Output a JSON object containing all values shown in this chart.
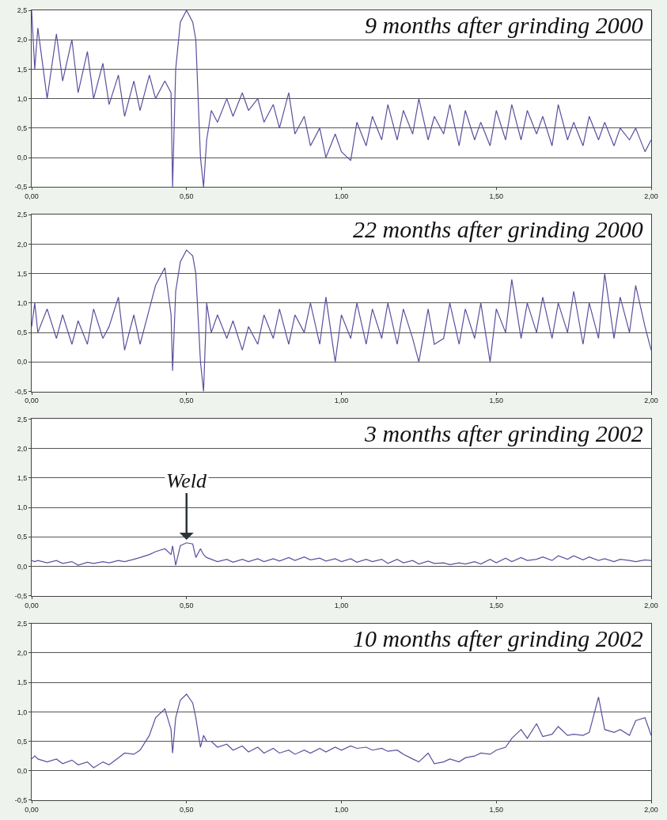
{
  "chart_data": [
    {
      "type": "line",
      "title": "9 months after grinding 2000",
      "xlim": [
        0,
        2
      ],
      "ylim": [
        -0.5,
        2.5
      ],
      "xticks": [
        {
          "value": 0,
          "label": "0,00"
        },
        {
          "value": 0.5,
          "label": "0,50"
        },
        {
          "value": 1,
          "label": "1,00"
        },
        {
          "value": 1.5,
          "label": "1,50"
        },
        {
          "value": 2,
          "label": "2,00"
        }
      ],
      "yticks": [
        {
          "value": -0.5,
          "label": "-0,5"
        },
        {
          "value": 0,
          "label": "0,0"
        },
        {
          "value": 0.5,
          "label": "0,5"
        },
        {
          "value": 1,
          "label": "1,0"
        },
        {
          "value": 1.5,
          "label": "1,5"
        },
        {
          "value": 2,
          "label": "2,0"
        },
        {
          "value": 2.5,
          "label": "2,5"
        }
      ],
      "grid": "y",
      "marker": "none",
      "x": [
        0,
        0.01,
        0.02,
        0.05,
        0.08,
        0.1,
        0.13,
        0.15,
        0.18,
        0.2,
        0.23,
        0.25,
        0.28,
        0.3,
        0.33,
        0.35,
        0.38,
        0.4,
        0.43,
        0.45,
        0.455,
        0.465,
        0.48,
        0.5,
        0.52,
        0.53,
        0.545,
        0.555,
        0.565,
        0.58,
        0.6,
        0.63,
        0.65,
        0.68,
        0.7,
        0.73,
        0.75,
        0.78,
        0.8,
        0.83,
        0.85,
        0.88,
        0.9,
        0.93,
        0.95,
        0.98,
        1.0,
        1.03,
        1.05,
        1.08,
        1.1,
        1.13,
        1.15,
        1.18,
        1.2,
        1.23,
        1.25,
        1.28,
        1.3,
        1.33,
        1.35,
        1.38,
        1.4,
        1.43,
        1.45,
        1.48,
        1.5,
        1.53,
        1.55,
        1.58,
        1.6,
        1.63,
        1.65,
        1.68,
        1.7,
        1.73,
        1.75,
        1.78,
        1.8,
        1.83,
        1.85,
        1.88,
        1.9,
        1.93,
        1.95,
        1.98,
        2.0
      ],
      "series": [
        {
          "color": "#5b4f9e",
          "values": [
            2.5,
            1.5,
            2.2,
            1.0,
            2.1,
            1.3,
            2.0,
            1.1,
            1.8,
            1.0,
            1.6,
            0.9,
            1.4,
            0.7,
            1.3,
            0.8,
            1.4,
            1.0,
            1.3,
            1.1,
            -0.5,
            1.5,
            2.3,
            2.5,
            2.3,
            2.0,
            0.0,
            -0.5,
            0.3,
            0.8,
            0.6,
            1.0,
            0.7,
            1.1,
            0.8,
            1.0,
            0.6,
            0.9,
            0.5,
            1.1,
            0.4,
            0.7,
            0.2,
            0.5,
            0.0,
            0.4,
            0.1,
            -0.05,
            0.6,
            0.2,
            0.7,
            0.3,
            0.9,
            0.3,
            0.8,
            0.4,
            1.0,
            0.3,
            0.7,
            0.4,
            0.9,
            0.2,
            0.8,
            0.3,
            0.6,
            0.2,
            0.8,
            0.3,
            0.9,
            0.3,
            0.8,
            0.4,
            0.7,
            0.2,
            0.9,
            0.3,
            0.6,
            0.2,
            0.7,
            0.3,
            0.6,
            0.2,
            0.5,
            0.3,
            0.5,
            0.1,
            0.3
          ]
        }
      ]
    },
    {
      "type": "line",
      "title": "22 months after grinding 2000",
      "xlim": [
        0,
        2
      ],
      "ylim": [
        -0.5,
        2.5
      ],
      "xticks": [
        {
          "value": 0,
          "label": "0,00"
        },
        {
          "value": 0.5,
          "label": "0,50"
        },
        {
          "value": 1,
          "label": "1,00"
        },
        {
          "value": 1.5,
          "label": "1,50"
        },
        {
          "value": 2,
          "label": "2,00"
        }
      ],
      "yticks": [
        {
          "value": -0.5,
          "label": "-0,5"
        },
        {
          "value": 0,
          "label": "0,0"
        },
        {
          "value": 0.5,
          "label": "0,5"
        },
        {
          "value": 1,
          "label": "1,0"
        },
        {
          "value": 1.5,
          "label": "1,5"
        },
        {
          "value": 2,
          "label": "2,0"
        },
        {
          "value": 2.5,
          "label": "2,5"
        }
      ],
      "grid": "y",
      "marker": "none",
      "x": [
        0,
        0.01,
        0.02,
        0.05,
        0.08,
        0.1,
        0.13,
        0.15,
        0.18,
        0.2,
        0.23,
        0.25,
        0.28,
        0.3,
        0.33,
        0.35,
        0.38,
        0.4,
        0.43,
        0.45,
        0.455,
        0.465,
        0.48,
        0.5,
        0.52,
        0.53,
        0.545,
        0.555,
        0.565,
        0.58,
        0.6,
        0.63,
        0.65,
        0.68,
        0.7,
        0.73,
        0.75,
        0.78,
        0.8,
        0.83,
        0.85,
        0.88,
        0.9,
        0.93,
        0.95,
        0.98,
        1.0,
        1.03,
        1.05,
        1.08,
        1.1,
        1.13,
        1.15,
        1.18,
        1.2,
        1.23,
        1.25,
        1.28,
        1.3,
        1.33,
        1.35,
        1.38,
        1.4,
        1.43,
        1.45,
        1.48,
        1.5,
        1.53,
        1.55,
        1.58,
        1.6,
        1.63,
        1.65,
        1.68,
        1.7,
        1.73,
        1.75,
        1.78,
        1.8,
        1.83,
        1.85,
        1.88,
        1.9,
        1.93,
        1.95,
        1.98,
        2.0
      ],
      "series": [
        {
          "color": "#5b4f9e",
          "values": [
            0.6,
            1.0,
            0.5,
            0.9,
            0.4,
            0.8,
            0.3,
            0.7,
            0.3,
            0.9,
            0.4,
            0.6,
            1.1,
            0.2,
            0.8,
            0.3,
            0.9,
            1.3,
            1.6,
            0.8,
            -0.15,
            1.2,
            1.7,
            1.9,
            1.8,
            1.5,
            0.0,
            -0.5,
            1.0,
            0.5,
            0.8,
            0.4,
            0.7,
            0.2,
            0.6,
            0.3,
            0.8,
            0.4,
            0.9,
            0.3,
            0.8,
            0.5,
            1.0,
            0.3,
            1.1,
            0.0,
            0.8,
            0.4,
            1.0,
            0.3,
            0.9,
            0.4,
            1.0,
            0.3,
            0.9,
            0.4,
            0.0,
            0.9,
            0.3,
            0.4,
            1.0,
            0.3,
            0.9,
            0.4,
            1.0,
            0.0,
            0.9,
            0.5,
            1.4,
            0.4,
            1.0,
            0.5,
            1.1,
            0.4,
            1.0,
            0.5,
            1.2,
            0.3,
            1.0,
            0.4,
            1.5,
            0.4,
            1.1,
            0.5,
            1.3,
            0.6,
            0.2
          ]
        }
      ]
    },
    {
      "type": "line",
      "title": "3 months after grinding 2002",
      "xlim": [
        0,
        2
      ],
      "ylim": [
        -0.5,
        2.5
      ],
      "xticks": [
        {
          "value": 0,
          "label": "0,00"
        },
        {
          "value": 0.5,
          "label": "0,50"
        },
        {
          "value": 1,
          "label": "1,00"
        },
        {
          "value": 1.5,
          "label": "1,50"
        },
        {
          "value": 2,
          "label": "2,00"
        }
      ],
      "yticks": [
        {
          "value": -0.5,
          "label": "-0,5"
        },
        {
          "value": 0,
          "label": "0,0"
        },
        {
          "value": 0.5,
          "label": "0,5"
        },
        {
          "value": 1,
          "label": "1,0"
        },
        {
          "value": 1.5,
          "label": "1,5"
        },
        {
          "value": 2,
          "label": "2,0"
        },
        {
          "value": 2.5,
          "label": "2,5"
        }
      ],
      "grid": "y",
      "marker": "none",
      "annotations": [
        {
          "text": "Weld",
          "x": 0.5,
          "y": 0.45
        }
      ],
      "x": [
        0,
        0.01,
        0.02,
        0.05,
        0.08,
        0.1,
        0.13,
        0.15,
        0.18,
        0.2,
        0.23,
        0.25,
        0.28,
        0.3,
        0.33,
        0.35,
        0.38,
        0.4,
        0.43,
        0.45,
        0.455,
        0.465,
        0.48,
        0.5,
        0.52,
        0.53,
        0.545,
        0.555,
        0.565,
        0.58,
        0.6,
        0.63,
        0.65,
        0.68,
        0.7,
        0.73,
        0.75,
        0.78,
        0.8,
        0.83,
        0.85,
        0.88,
        0.9,
        0.93,
        0.95,
        0.98,
        1.0,
        1.03,
        1.05,
        1.08,
        1.1,
        1.13,
        1.15,
        1.18,
        1.2,
        1.23,
        1.25,
        1.28,
        1.3,
        1.33,
        1.35,
        1.38,
        1.4,
        1.43,
        1.45,
        1.48,
        1.5,
        1.53,
        1.55,
        1.58,
        1.6,
        1.63,
        1.65,
        1.68,
        1.7,
        1.73,
        1.75,
        1.78,
        1.8,
        1.83,
        1.85,
        1.88,
        1.9,
        1.93,
        1.95,
        1.98,
        2.0
      ],
      "series": [
        {
          "color": "#5b4f9e",
          "values": [
            0.1,
            0.08,
            0.1,
            0.06,
            0.1,
            0.05,
            0.08,
            0.02,
            0.07,
            0.05,
            0.08,
            0.06,
            0.1,
            0.08,
            0.12,
            0.15,
            0.2,
            0.25,
            0.3,
            0.2,
            0.35,
            0.02,
            0.35,
            0.4,
            0.38,
            0.15,
            0.3,
            0.2,
            0.15,
            0.12,
            0.08,
            0.12,
            0.07,
            0.12,
            0.08,
            0.13,
            0.08,
            0.13,
            0.09,
            0.15,
            0.1,
            0.16,
            0.11,
            0.14,
            0.09,
            0.13,
            0.08,
            0.13,
            0.07,
            0.12,
            0.08,
            0.12,
            0.05,
            0.12,
            0.06,
            0.1,
            0.04,
            0.09,
            0.05,
            0.06,
            0.03,
            0.06,
            0.04,
            0.08,
            0.04,
            0.12,
            0.06,
            0.14,
            0.08,
            0.15,
            0.1,
            0.12,
            0.16,
            0.1,
            0.18,
            0.12,
            0.18,
            0.11,
            0.16,
            0.1,
            0.13,
            0.08,
            0.12,
            0.1,
            0.08,
            0.11,
            0.1
          ]
        }
      ]
    },
    {
      "type": "line",
      "title": "10 months after grinding 2002",
      "xlim": [
        0,
        2
      ],
      "ylim": [
        -0.5,
        2.5
      ],
      "xticks": [
        {
          "value": 0,
          "label": "0,00"
        },
        {
          "value": 0.5,
          "label": "0,50"
        },
        {
          "value": 1,
          "label": "1,00"
        },
        {
          "value": 1.5,
          "label": "1,50"
        },
        {
          "value": 2,
          "label": "2,00"
        }
      ],
      "yticks": [
        {
          "value": -0.5,
          "label": "-0,5"
        },
        {
          "value": 0,
          "label": "0,0"
        },
        {
          "value": 0.5,
          "label": "0,5"
        },
        {
          "value": 1,
          "label": "1,0"
        },
        {
          "value": 1.5,
          "label": "1,5"
        },
        {
          "value": 2,
          "label": "2,0"
        },
        {
          "value": 2.5,
          "label": "2,5"
        }
      ],
      "grid": "y",
      "marker": "none",
      "x": [
        0,
        0.01,
        0.02,
        0.05,
        0.08,
        0.1,
        0.13,
        0.15,
        0.18,
        0.2,
        0.23,
        0.25,
        0.28,
        0.3,
        0.33,
        0.35,
        0.38,
        0.4,
        0.43,
        0.45,
        0.455,
        0.465,
        0.48,
        0.5,
        0.52,
        0.53,
        0.545,
        0.555,
        0.565,
        0.58,
        0.6,
        0.63,
        0.65,
        0.68,
        0.7,
        0.73,
        0.75,
        0.78,
        0.8,
        0.83,
        0.85,
        0.88,
        0.9,
        0.93,
        0.95,
        0.98,
        1.0,
        1.03,
        1.05,
        1.08,
        1.1,
        1.13,
        1.15,
        1.18,
        1.2,
        1.23,
        1.25,
        1.28,
        1.3,
        1.33,
        1.35,
        1.38,
        1.4,
        1.43,
        1.45,
        1.48,
        1.5,
        1.53,
        1.55,
        1.58,
        1.6,
        1.63,
        1.65,
        1.68,
        1.7,
        1.73,
        1.75,
        1.78,
        1.8,
        1.83,
        1.85,
        1.88,
        1.9,
        1.93,
        1.95,
        1.98,
        2.0
      ],
      "series": [
        {
          "color": "#5b4f9e",
          "values": [
            0.2,
            0.25,
            0.2,
            0.15,
            0.2,
            0.12,
            0.18,
            0.1,
            0.15,
            0.05,
            0.15,
            0.1,
            0.22,
            0.3,
            0.28,
            0.35,
            0.6,
            0.9,
            1.05,
            0.7,
            0.3,
            0.9,
            1.2,
            1.3,
            1.15,
            0.9,
            0.4,
            0.6,
            0.5,
            0.5,
            0.4,
            0.45,
            0.35,
            0.42,
            0.32,
            0.4,
            0.3,
            0.38,
            0.3,
            0.35,
            0.28,
            0.35,
            0.3,
            0.38,
            0.32,
            0.4,
            0.35,
            0.42,
            0.38,
            0.4,
            0.35,
            0.38,
            0.33,
            0.35,
            0.28,
            0.2,
            0.15,
            0.3,
            0.12,
            0.15,
            0.2,
            0.15,
            0.22,
            0.25,
            0.3,
            0.28,
            0.35,
            0.4,
            0.55,
            0.7,
            0.55,
            0.8,
            0.58,
            0.62,
            0.75,
            0.6,
            0.62,
            0.6,
            0.65,
            1.25,
            0.7,
            0.65,
            0.7,
            0.6,
            0.85,
            0.9,
            0.6
          ]
        }
      ]
    }
  ]
}
